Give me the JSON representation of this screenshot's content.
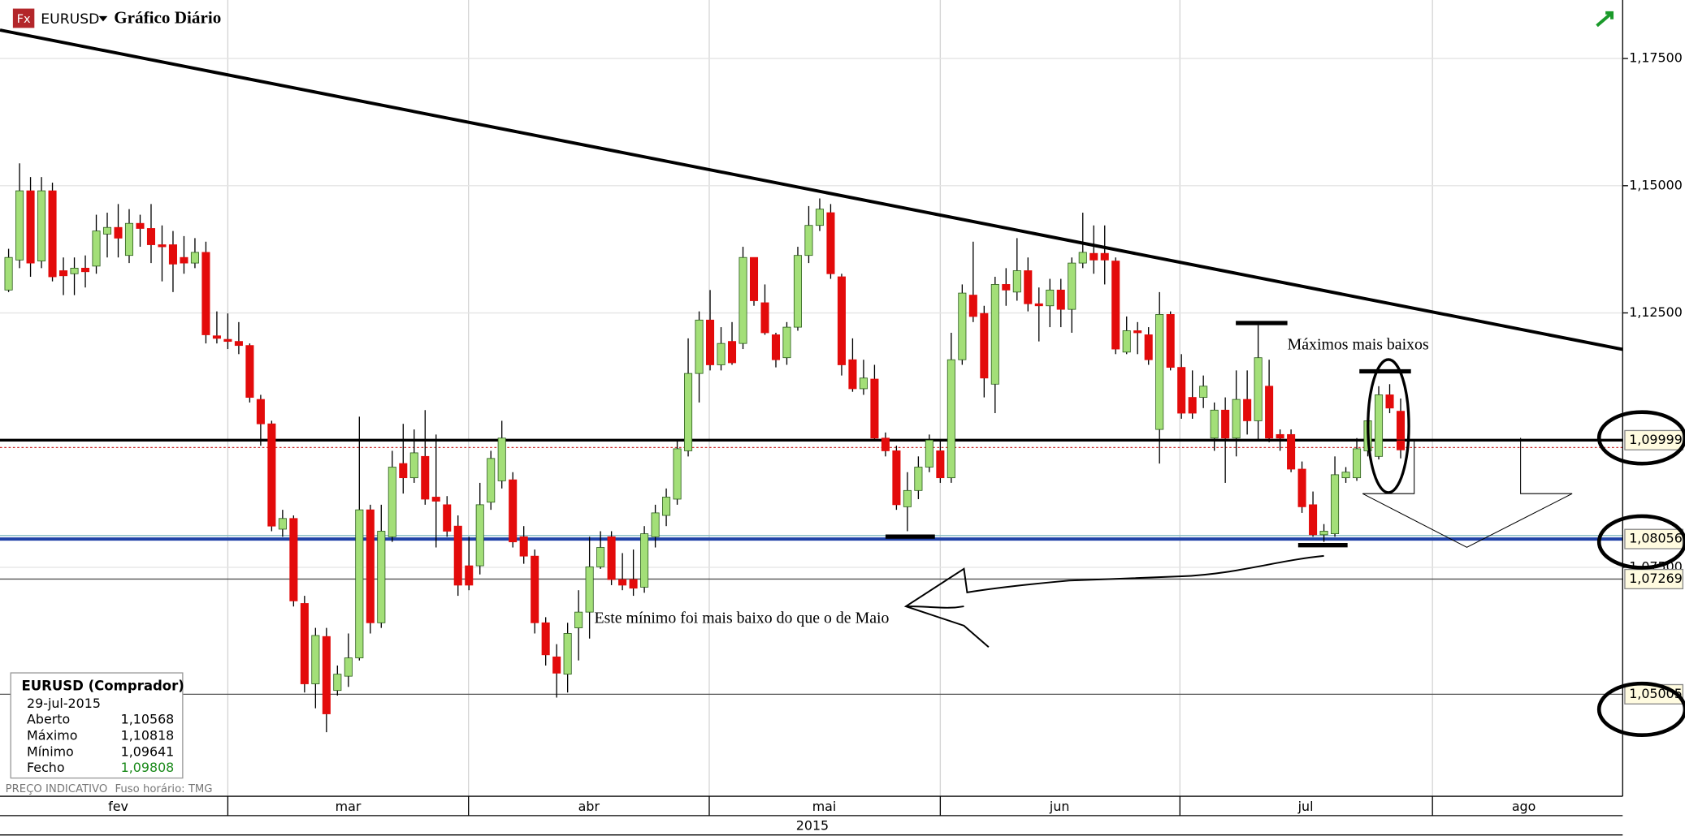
{
  "header": {
    "symbol": "EURUSD",
    "logo": "Fx"
  },
  "chart_data": {
    "type": "candlestick",
    "title": "Gráfico Diário",
    "up_color": "#a3df78",
    "down_color": "#e30b0b",
    "open": [
      1.1295,
      1.1354,
      1.149,
      1.1352,
      1.149,
      1.1333,
      1.1327,
      1.1338,
      1.1342,
      1.1405,
      1.1418,
      1.1363,
      1.1426,
      1.1416,
      1.1384,
      1.1384,
      1.1359,
      1.1348,
      1.1369,
      1.1205,
      1.1198,
      1.1194,
      1.1186,
      1.108,
      1.1032,
      1.0825,
      1.0846,
      1.0679,
      1.0521,
      1.0614,
      1.0508,
      1.0536,
      1.0572,
      1.0863,
      1.0641,
      1.081,
      1.0954,
      1.0926,
      1.0968,
      1.0888,
      1.0873,
      1.0831,
      1.0753,
      1.0753,
      1.0878,
      1.092,
      1.0922,
      1.081,
      1.0772,
      1.0641,
      1.0574,
      1.054,
      1.0631,
      1.0662,
      1.0751,
      1.081,
      1.0726,
      1.0726,
      1.0711,
      1.081,
      1.0852,
      1.0884,
      1.0979,
      1.1131,
      1.1236,
      1.1148,
      1.1194,
      1.119,
      1.1359,
      1.127,
      1.1207,
      1.1162,
      1.1222,
      1.1363,
      1.1422,
      1.1447,
      1.1321,
      1.1158,
      1.1101,
      1.112,
      1.1004,
      1.0979,
      1.0869,
      1.0901,
      1.0947,
      1.0979,
      1.0926,
      1.1158,
      1.1285,
      1.1249,
      1.111,
      1.1306,
      1.1291,
      1.1333,
      1.1268,
      1.1264,
      1.1295,
      1.1257,
      1.1348,
      1.1367,
      1.1367,
      1.1352,
      1.1173,
      1.1215,
      1.1207,
      1.1021,
      1.1247,
      1.1143,
      1.1084,
      1.1084,
      1.1004,
      1.1059,
      1.1004,
      1.108,
      1.1038,
      1.1106,
      1.1011,
      1.1011,
      1.0943,
      1.0873,
      1.0814,
      1.0816,
      1.0926,
      1.0926,
      1.0979,
      1.0968,
      1.1089,
      1.10568
    ],
    "high": [
      1.1376,
      1.1544,
      1.1517,
      1.1517,
      1.1506,
      1.1359,
      1.1359,
      1.1363,
      1.1443,
      1.1447,
      1.1464,
      1.1454,
      1.1443,
      1.1464,
      1.1422,
      1.1411,
      1.1401,
      1.1397,
      1.139,
      1.1253,
      1.1249,
      1.1232,
      1.119,
      1.1089,
      1.1038,
      1.0863,
      1.0852,
      1.0694,
      1.0631,
      1.0631,
      1.0557,
      1.062,
      1.1046,
      1.0873,
      1.0873,
      1.0979,
      1.1032,
      1.1021,
      1.1059,
      1.1011,
      1.089,
      1.0852,
      1.081,
      1.0916,
      1.0979,
      1.1038,
      1.0937,
      1.0831,
      1.0785,
      1.0652,
      1.0599,
      1.0641,
      1.0705,
      1.081,
      1.0821,
      1.0821,
      1.0778,
      1.0785,
      1.0831,
      1.0873,
      1.0905,
      1.1,
      1.12,
      1.1253,
      1.1295,
      1.1222,
      1.1232,
      1.138,
      1.1359,
      1.1306,
      1.1211,
      1.1232,
      1.138,
      1.146,
      1.1475,
      1.1464,
      1.1327,
      1.12,
      1.1158,
      1.1148,
      1.1015,
      1.0989,
      1.0937,
      1.0968,
      1.1011,
      1.1,
      1.1211,
      1.1306,
      1.139,
      1.1264,
      1.1321,
      1.1338,
      1.1397,
      1.1359,
      1.13,
      1.1317,
      1.1317,
      1.1359,
      1.1447,
      1.1422,
      1.1422,
      1.1359,
      1.1243,
      1.1232,
      1.1222,
      1.1291,
      1.1253,
      1.1169,
      1.1137,
      1.1127,
      1.1074,
      1.1084,
      1.1137,
      1.1137,
      1.1226,
      1.1158,
      1.1021,
      1.1021,
      1.0958,
      1.0899,
      1.0835,
      1.0968,
      1.0947,
      1.1004,
      1.1053,
      1.1106,
      1.111,
      1.10818
    ],
    "low": [
      1.1291,
      1.1338,
      1.1321,
      1.1338,
      1.1312,
      1.1285,
      1.1285,
      1.13,
      1.1327,
      1.1359,
      1.1359,
      1.1348,
      1.138,
      1.1348,
      1.1312,
      1.1291,
      1.1327,
      1.1338,
      1.119,
      1.119,
      1.1179,
      1.1169,
      1.1074,
      1.0989,
      1.0821,
      1.081,
      1.0673,
      1.0504,
      1.0473,
      1.0426,
      1.0498,
      1.0515,
      1.0567,
      1.062,
      1.0631,
      1.08,
      1.0895,
      1.0916,
      1.0873,
      1.0789,
      1.081,
      1.0694,
      1.0705,
      1.0736,
      1.0863,
      1.0905,
      1.0789,
      1.0757,
      1.062,
      1.0557,
      1.0494,
      1.0504,
      1.0567,
      1.061,
      1.0747,
      1.0715,
      1.0705,
      1.0694,
      1.07,
      1.0789,
      1.0831,
      1.0873,
      1.0968,
      1.1074,
      1.1137,
      1.1137,
      1.1148,
      1.1179,
      1.1264,
      1.1207,
      1.1143,
      1.1148,
      1.1215,
      1.1348,
      1.1411,
      1.1317,
      1.1127,
      1.1095,
      1.1089,
      1.1,
      1.0968,
      1.0863,
      1.0821,
      1.0884,
      1.0937,
      1.0916,
      1.0916,
      1.1148,
      1.1232,
      1.1084,
      1.1053,
      1.1264,
      1.1274,
      1.1253,
      1.1194,
      1.1222,
      1.1222,
      1.1211,
      1.1338,
      1.1327,
      1.1306,
      1.1169,
      1.1169,
      1.1169,
      1.1148,
      1.0954,
      1.1137,
      1.1042,
      1.1042,
      1.1063,
      1.0979,
      1.0916,
      1.0968,
      1.1011,
      1.1,
      1.0996,
      1.0979,
      1.0937,
      1.0857,
      1.081,
      1.08,
      1.081,
      1.0916,
      1.092,
      1.0968,
      1.0962,
      1.1053,
      1.09641
    ],
    "close": [
      1.1359,
      1.149,
      1.1348,
      1.149,
      1.1321,
      1.1323,
      1.1338,
      1.1331,
      1.1411,
      1.1418,
      1.1397,
      1.1426,
      1.1416,
      1.1384,
      1.138,
      1.1346,
      1.1348,
      1.1369,
      1.1207,
      1.12,
      1.1194,
      1.1186,
      1.1084,
      1.1032,
      1.0831,
      1.0846,
      1.0684,
      1.0521,
      1.0616,
      1.0462,
      1.054,
      1.0572,
      1.0863,
      1.0641,
      1.0821,
      1.0947,
      1.0926,
      1.0975,
      1.0884,
      1.088,
      1.0821,
      1.0715,
      1.0715,
      1.0873,
      1.0964,
      1.1004,
      1.08,
      1.0772,
      1.0641,
      1.0578,
      1.0542,
      1.062,
      1.0662,
      1.0751,
      1.0789,
      1.0726,
      1.0715,
      1.0709,
      1.0816,
      1.0857,
      1.0888,
      1.0983,
      1.1131,
      1.1236,
      1.1148,
      1.119,
      1.1152,
      1.1359,
      1.1274,
      1.1211,
      1.1158,
      1.1222,
      1.1363,
      1.1422,
      1.1454,
      1.1327,
      1.1148,
      1.1101,
      1.1122,
      1.1004,
      1.0979,
      1.0873,
      1.0901,
      1.0947,
      1.1,
      1.0926,
      1.1158,
      1.1289,
      1.1243,
      1.1122,
      1.1306,
      1.1295,
      1.1333,
      1.1268,
      1.1264,
      1.1295,
      1.1257,
      1.1348,
      1.1369,
      1.1354,
      1.1354,
      1.1179,
      1.1215,
      1.1211,
      1.1158,
      1.1247,
      1.1143,
      1.1053,
      1.1053,
      1.1106,
      1.1059,
      1.1004,
      1.108,
      1.1038,
      1.1162,
      1.1004,
      1.1004,
      1.0943,
      1.0869,
      1.0814,
      1.0821,
      1.0932,
      1.0937,
      1.0983,
      1.1038,
      1.1089,
      1.1063,
      1.09808
    ],
    "ylim": [
      1.03,
      1.1865
    ],
    "yticks": [
      {
        "value": 1.175,
        "label": "1,17500"
      },
      {
        "value": 1.15,
        "label": "1,15000"
      },
      {
        "value": 1.125,
        "label": "1,12500"
      },
      {
        "value": 1.075,
        "label": "1,07500"
      }
    ],
    "grid": true,
    "x_labels": [
      "fev",
      "mar",
      "abr",
      "mai",
      "jun",
      "jul",
      "ago"
    ],
    "x_year": "2015",
    "levels": [
      {
        "value": 1.09999,
        "label": "1,09999",
        "color": "#000000"
      },
      {
        "value": 1.08056,
        "label": "1,08056",
        "color": "#2142a8"
      },
      {
        "value": 1.07269,
        "label": "1,07269",
        "color": "#555555"
      },
      {
        "value": 1.05005,
        "label": "1,05005",
        "color": "#555555"
      }
    ],
    "annotations": [
      "Máximos mais baixos",
      "Este mínimo foi mais baixo do que o de Maio"
    ]
  },
  "info_box": {
    "title": "EURUSD (Comprador)",
    "date": "29-jul-2015",
    "rows": [
      [
        "Aberto",
        "1,10568"
      ],
      [
        "Máximo",
        "1,10818"
      ],
      [
        "Mínimo",
        "1,09641"
      ],
      [
        "Fecho",
        "1,09808"
      ]
    ]
  },
  "footer": {
    "note": "PREÇO INDICATIVO",
    "timezone": "Fuso horário: TMG"
  }
}
